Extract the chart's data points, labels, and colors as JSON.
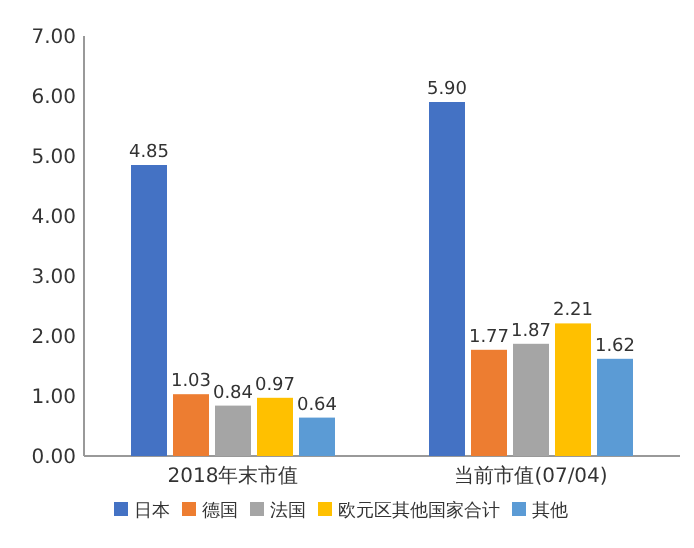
{
  "chart_data": {
    "type": "bar",
    "categories": [
      "2018年末市值",
      "当前市值(07/04)"
    ],
    "series": [
      {
        "name": "日本",
        "color": "#4472c4",
        "values": [
          4.85,
          5.9
        ],
        "value_labels": [
          "4.85",
          "5.90"
        ]
      },
      {
        "name": "德国",
        "color": "#ed7d31",
        "values": [
          1.03,
          1.77
        ],
        "value_labels": [
          "1.03",
          "1.77"
        ]
      },
      {
        "name": "法国",
        "color": "#a5a5a5",
        "values": [
          0.84,
          1.87
        ],
        "value_labels": [
          "0.84",
          "1.87"
        ]
      },
      {
        "name": "欧元区其他国家合计",
        "color": "#ffc000",
        "values": [
          0.97,
          2.21
        ],
        "value_labels": [
          "0.97",
          "2.21"
        ]
      },
      {
        "name": "其他",
        "color": "#5b9bd5",
        "values": [
          0.64,
          1.62
        ],
        "value_labels": [
          "0.64",
          "1.62"
        ]
      }
    ],
    "ylim": [
      0,
      7
    ],
    "yticks": [
      {
        "value": 0,
        "label": "0.00"
      },
      {
        "value": 1,
        "label": "1.00"
      },
      {
        "value": 2,
        "label": "2.00"
      },
      {
        "value": 3,
        "label": "3.00"
      },
      {
        "value": 4,
        "label": "4.00"
      },
      {
        "value": 5,
        "label": "5.00"
      },
      {
        "value": 6,
        "label": "6.00"
      },
      {
        "value": 7,
        "label": "7.00"
      }
    ],
    "legend": "bottom"
  }
}
